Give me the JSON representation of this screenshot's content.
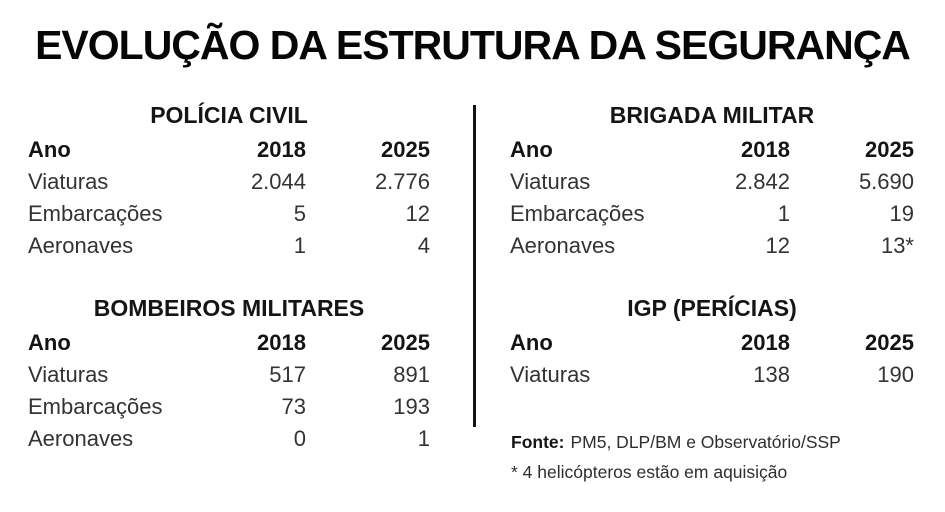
{
  "title": "EVOLUÇÃO DA ESTRUTURA DA SEGURANÇA",
  "colors": {
    "background": "#ffffff",
    "title_text": "#060606",
    "body_text": "#333333",
    "divider": "#141414"
  },
  "chart_data": [
    {
      "type": "table",
      "title": "POLÍCIA CIVIL",
      "columns": [
        "Ano",
        "2018",
        "2025"
      ],
      "rows": [
        [
          "Viaturas",
          "2.044",
          "2.776"
        ],
        [
          "Embarcações",
          "5",
          "12"
        ],
        [
          "Aeronaves",
          "1",
          "4"
        ]
      ]
    },
    {
      "type": "table",
      "title": "BRIGADA MILITAR",
      "columns": [
        "Ano",
        "2018",
        "2025"
      ],
      "rows": [
        [
          "Viaturas",
          "2.842",
          "5.690"
        ],
        [
          "Embarcações",
          "1",
          "19"
        ],
        [
          "Aeronaves",
          "12",
          "13*"
        ]
      ]
    },
    {
      "type": "table",
      "title": "BOMBEIROS MILITARES",
      "columns": [
        "Ano",
        "2018",
        "2025"
      ],
      "rows": [
        [
          "Viaturas",
          "517",
          "891"
        ],
        [
          "Embarcações",
          "73",
          "193"
        ],
        [
          "Aeronaves",
          "0",
          "1"
        ]
      ]
    },
    {
      "type": "table",
      "title": "IGP (PERÍCIAS)",
      "columns": [
        "Ano",
        "2018",
        "2025"
      ],
      "rows": [
        [
          "Viaturas",
          "138",
          "190"
        ]
      ]
    }
  ],
  "footer": {
    "source_label": "Fonte:",
    "source_text": "PM5, DLP/BM e Observatório/SSP",
    "note": "* 4 helicópteros estão em aquisição"
  }
}
